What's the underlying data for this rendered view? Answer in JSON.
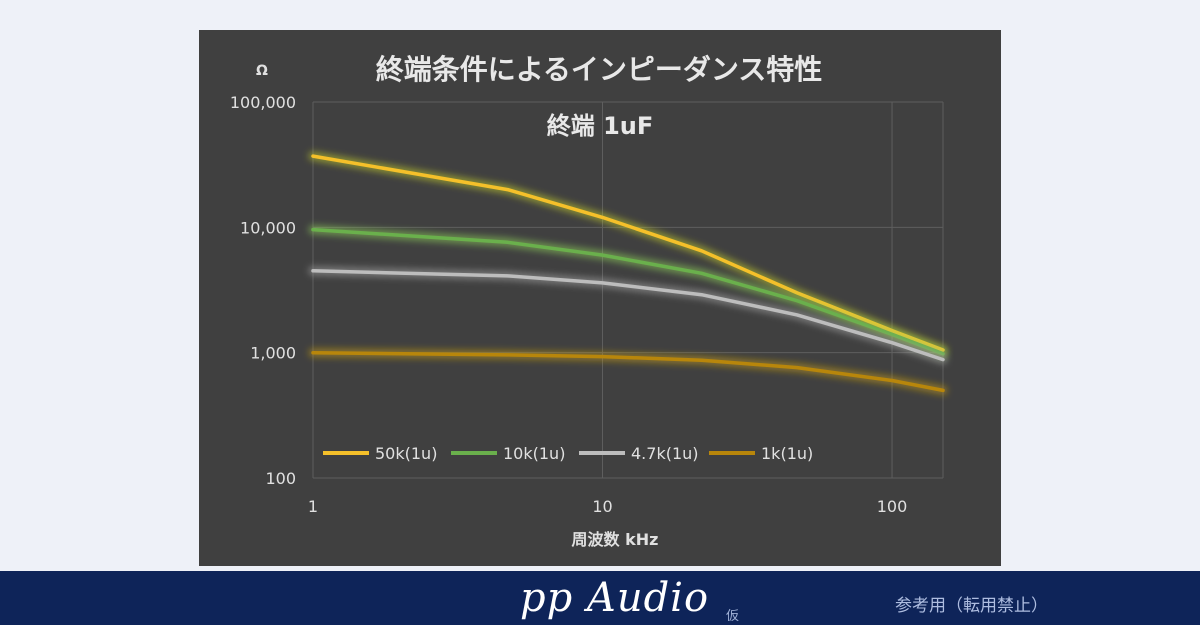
{
  "chart_data": {
    "type": "line",
    "title": "終端条件によるインピーダンス特性",
    "subtitle": "終端 1uF",
    "ylabel": "Ω",
    "xlabel": "周波数 kHz",
    "x_scale": "log",
    "y_scale": "log",
    "xlim": [
      1,
      150
    ],
    "ylim": [
      100,
      100000
    ],
    "x_ticks": [
      {
        "value": 1,
        "label": "1"
      },
      {
        "value": 10,
        "label": "10"
      },
      {
        "value": 100,
        "label": "100"
      }
    ],
    "y_ticks": [
      {
        "value": 100,
        "label": "100"
      },
      {
        "value": 1000,
        "label": "1,000"
      },
      {
        "value": 10000,
        "label": "10,000"
      },
      {
        "value": 100000,
        "label": "100,000"
      }
    ],
    "grid": true,
    "legend_position": "bottom-left",
    "series": [
      {
        "name": "50k(1u)",
        "color": "#f5c02a",
        "glow": "#c9d12a",
        "points": [
          [
            1,
            37000
          ],
          [
            4.7,
            20000
          ],
          [
            10,
            12000
          ],
          [
            22,
            6500
          ],
          [
            47,
            3000
          ],
          [
            100,
            1500
          ],
          [
            150,
            1050
          ]
        ]
      },
      {
        "name": "10k(1u)",
        "color": "#6ab04c",
        "glow": "#8fd35a",
        "points": [
          [
            1,
            9600
          ],
          [
            4.7,
            7600
          ],
          [
            10,
            6000
          ],
          [
            22,
            4300
          ],
          [
            47,
            2600
          ],
          [
            100,
            1400
          ],
          [
            150,
            980
          ]
        ]
      },
      {
        "name": "4.7k(1u)",
        "color": "#bdbdbd",
        "glow": "#a8a8a8",
        "points": [
          [
            1,
            4500
          ],
          [
            4.7,
            4100
          ],
          [
            10,
            3600
          ],
          [
            22,
            2900
          ],
          [
            47,
            2000
          ],
          [
            100,
            1200
          ],
          [
            150,
            880
          ]
        ]
      },
      {
        "name": "1k(1u)",
        "color": "#b8860b",
        "glow": "#c49a1a",
        "points": [
          [
            1,
            1000
          ],
          [
            4.7,
            960
          ],
          [
            10,
            930
          ],
          [
            22,
            870
          ],
          [
            47,
            760
          ],
          [
            100,
            600
          ],
          [
            150,
            500
          ]
        ]
      }
    ]
  },
  "footer": {
    "brand": "pp Audio",
    "brand_mark": "仮",
    "notice": "参考用（転用禁止）"
  }
}
